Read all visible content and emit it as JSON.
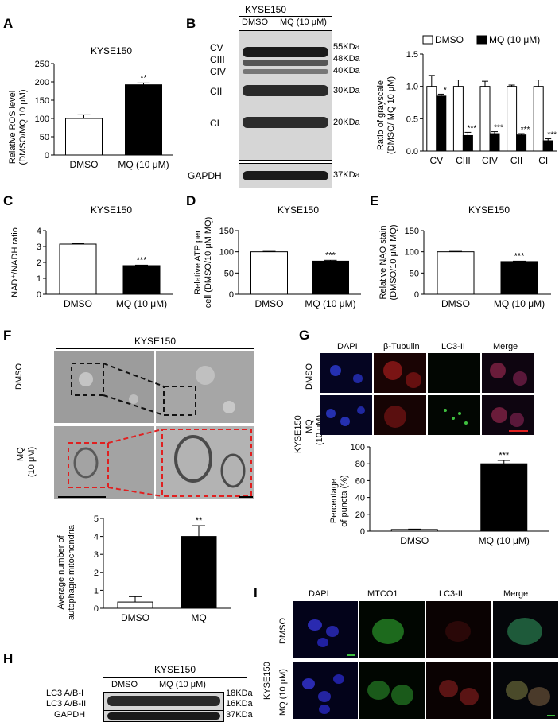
{
  "panel_letters": [
    "A",
    "B",
    "C",
    "D",
    "E",
    "F",
    "G",
    "H",
    "I"
  ],
  "panelA": {
    "title": "KYSE150",
    "ylabel_line1": "Relative ROS level",
    "ylabel_line2": "(DMSO/MQ 10 μM)",
    "yticks": [
      "0",
      "50",
      "100",
      "150",
      "200",
      "250"
    ],
    "sig": "**"
  },
  "panelB": {
    "cell_line": "KYSE150",
    "lane1": "DMSO",
    "lane2": "MQ (10 μM)",
    "complex_labels": [
      "CV",
      "CIII",
      "CIV",
      "CII",
      "CI"
    ],
    "mw_labels": [
      "55KDa",
      "48KDa",
      "40KDa",
      "30KDa",
      "20KDa"
    ],
    "gapdh_label": "GAPDH",
    "gapdh_mw": "37KDa",
    "legend_dmso": "DMSO",
    "legend_mq": "MQ (10 μM)",
    "ylabel_line1": "Ratio of grayscale",
    "ylabel_line2": "(DMSO/ MQ 10 μM)",
    "yticks": [
      "0.0",
      "0.5",
      "1.0",
      "1.5"
    ],
    "sigs": [
      "*",
      "***",
      "***",
      "***",
      "***"
    ]
  },
  "panelC": {
    "title": "KYSE150",
    "ylabel": "NAD⁺/NADH ratio",
    "yticks": [
      "0",
      "1",
      "2",
      "3",
      "4"
    ],
    "sig": "***"
  },
  "panelD": {
    "title": "KYSE150",
    "ylabel_line1": "Relative ATP per",
    "ylabel_line2": "cell (DMSO/10 μM MQ)",
    "yticks": [
      "0",
      "50",
      "100",
      "150"
    ],
    "sig": "***"
  },
  "panelE": {
    "title": "KYSE150",
    "ylabel_line1": "Relative NAO stain",
    "ylabel_line2": "(DMSO/10 μM MQ)",
    "yticks": [
      "0",
      "50",
      "100",
      "150"
    ],
    "sig": "***"
  },
  "panelF": {
    "title": "KYSE150",
    "row1": "DMSO",
    "row2_line1": "MQ",
    "row2_line2": "(10 μM)",
    "ylabel_line1": "Average number of",
    "ylabel_line2": "autophagic mitochondria",
    "yticks": [
      "0",
      "1",
      "2",
      "3",
      "4",
      "5"
    ],
    "sig": "**"
  },
  "panelG": {
    "col_headers": [
      "DAPI",
      "β-Tubulin",
      "LC3-II",
      "Merge"
    ],
    "cell_line": "KYSE150",
    "row1": "DMSO",
    "row2_line1": "MQ",
    "row2_line2": "(10 μM)",
    "ylabel_line1": "Percentage",
    "ylabel_line2": "of puncta (%)",
    "yticks": [
      "0",
      "20",
      "40",
      "60",
      "80",
      "100"
    ],
    "sig": "***"
  },
  "panelH": {
    "cell_line": "KYSE150",
    "lane1": "DMSO",
    "lane2": "MQ (10 μM)",
    "label_lc3_1": "LC3 A/B-I",
    "label_lc3_2": "LC3 A/B-II",
    "label_gapdh": "GAPDH",
    "mw1": "18KDa",
    "mw2": "16KDa",
    "mw3": "37KDa"
  },
  "panelI": {
    "col_headers": [
      "DAPI",
      "MTCO1",
      "LC3-II",
      "Merge"
    ],
    "cell_line": "KYSE150",
    "row1": "DMSO",
    "row2": "MQ (10 μM)"
  },
  "chart_data": [
    {
      "panel": "A",
      "type": "bar",
      "categories": [
        "DMSO",
        "MQ (10 μM)"
      ],
      "values": [
        100,
        192
      ],
      "errors": [
        10,
        5
      ],
      "ylim": [
        0,
        250
      ],
      "title": "KYSE150"
    },
    {
      "panel": "B",
      "type": "bar",
      "categories": [
        "CV",
        "CIII",
        "CIV",
        "CII",
        "CI"
      ],
      "series": [
        {
          "name": "DMSO",
          "values": [
            1.0,
            1.0,
            1.0,
            1.0,
            1.0
          ],
          "errors": [
            0.17,
            0.1,
            0.08,
            0.02,
            0.1
          ]
        },
        {
          "name": "MQ (10 μM)",
          "values": [
            0.85,
            0.24,
            0.27,
            0.25,
            0.16
          ],
          "errors": [
            0.03,
            0.05,
            0.03,
            0.02,
            0.03
          ]
        }
      ],
      "ylim": [
        0,
        1.5
      ],
      "legend": "top"
    },
    {
      "panel": "C",
      "type": "bar",
      "categories": [
        "DMSO",
        "MQ (10 μM)"
      ],
      "values": [
        3.15,
        1.8
      ],
      "errors": [
        0.03,
        0.03
      ],
      "ylim": [
        0,
        4
      ],
      "title": "KYSE150"
    },
    {
      "panel": "D",
      "type": "bar",
      "categories": [
        "DMSO",
        "MQ (10 μM)"
      ],
      "values": [
        100,
        78
      ],
      "errors": [
        1,
        2
      ],
      "ylim": [
        0,
        150
      ],
      "title": "KYSE150"
    },
    {
      "panel": "E",
      "type": "bar",
      "categories": [
        "DMSO",
        "MQ (10 μM)"
      ],
      "values": [
        100,
        77
      ],
      "errors": [
        1,
        1
      ],
      "ylim": [
        0,
        150
      ],
      "title": "KYSE150"
    },
    {
      "panel": "F",
      "type": "bar",
      "categories": [
        "DMSO",
        "MQ"
      ],
      "values": [
        0.35,
        4.0
      ],
      "errors": [
        0.3,
        0.6
      ],
      "ylim": [
        0,
        5
      ]
    },
    {
      "panel": "G",
      "type": "bar",
      "categories": [
        "DMSO",
        "MQ (10 μM)"
      ],
      "values": [
        2,
        80
      ],
      "errors": [
        0.5,
        4
      ],
      "ylim": [
        0,
        100
      ]
    }
  ]
}
